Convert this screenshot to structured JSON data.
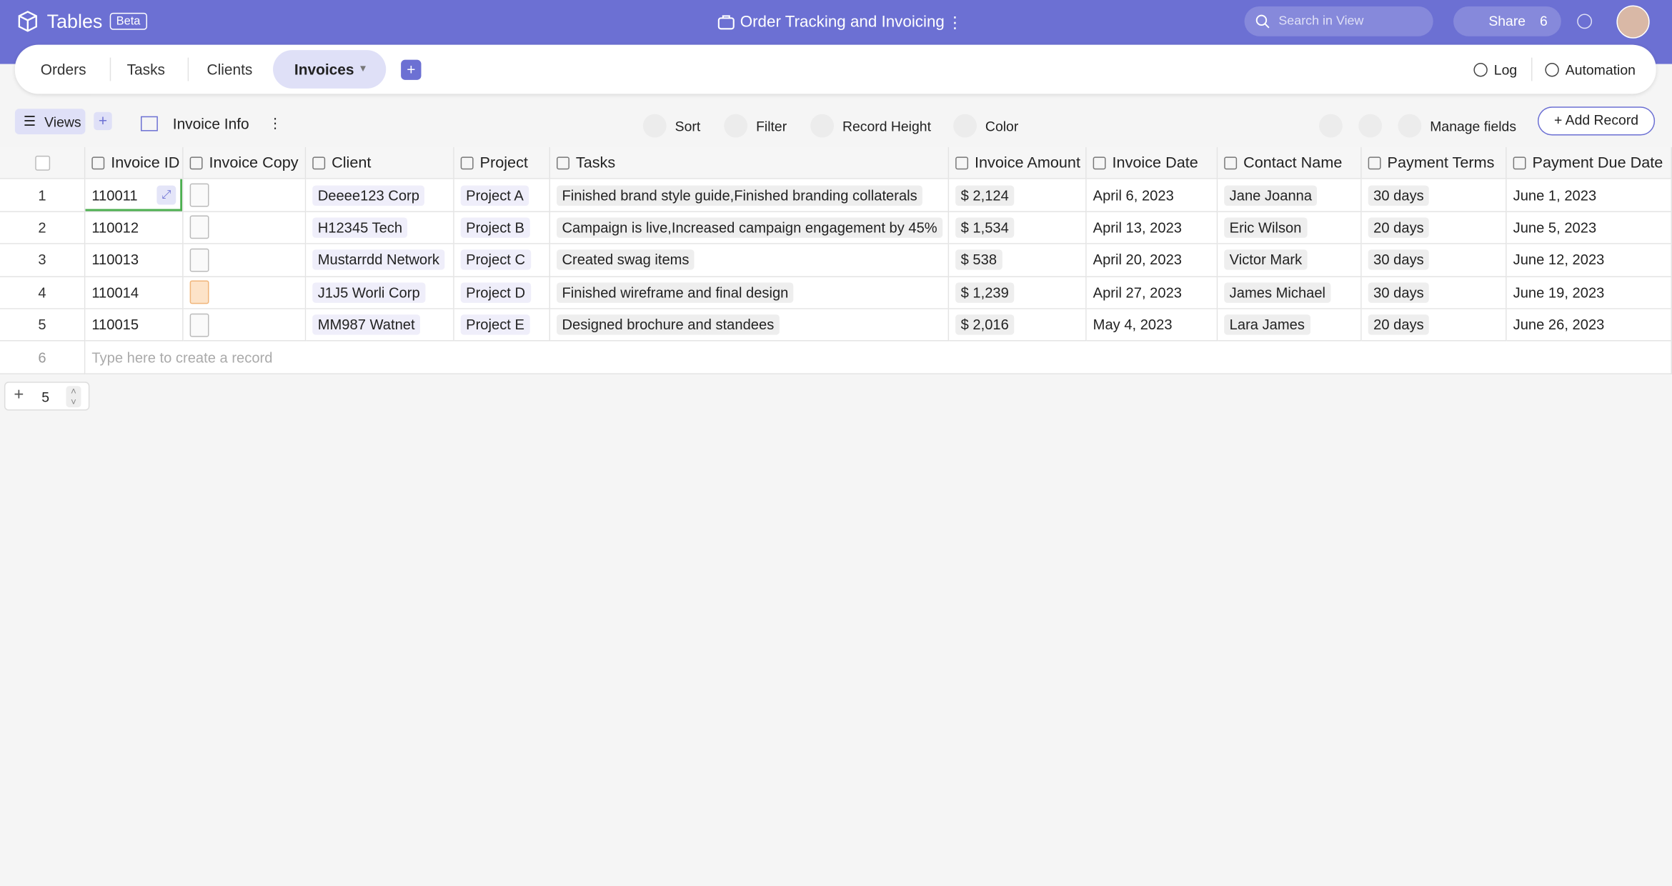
{
  "header": {
    "app": "Tables",
    "badge": "Beta",
    "title": "Order Tracking and Invoicing",
    "search": "Search in View",
    "share": "Share",
    "share_count": "6"
  },
  "tabs": [
    "Orders",
    "Tasks",
    "Clients",
    "Invoices"
  ],
  "tab_actions": [
    "Log",
    "Automation"
  ],
  "toolbar": {
    "views": "Views",
    "view_name": "Invoice Info",
    "sort": "Sort",
    "filter": "Filter",
    "record_height": "Record Height",
    "color": "Color",
    "manage_fields": "Manage fields",
    "add_record": "+ Add Record"
  },
  "table": {
    "columns": [
      "Invoice ID",
      "Invoice Copy",
      "Client",
      "Project",
      "Tasks",
      "Invoice Amount",
      "Invoice Date",
      "Contact Name",
      "Payment Terms",
      "Payment Due Date"
    ],
    "row_numbers": [
      "1",
      "2",
      "3",
      "4",
      "5"
    ],
    "rows": [
      [
        "110011",
        "Deeee123 Corp",
        "Project A",
        "Finished brand style guide,Finished branding collaterals",
        "$ 2,124",
        "April 6, 2023",
        "Jane Joanna",
        "30 days",
        "June 1, 2023"
      ],
      [
        "110012",
        "H12345 Tech",
        "Project B",
        "Campaign is live,Increased campaign engagement by 45%",
        "$ 1,534",
        "April 13, 2023",
        "Eric Wilson",
        "20 days",
        "June 5, 2023"
      ],
      [
        "110013",
        "Mustarrdd Network",
        "Project C",
        "Created swag items",
        "$ 538",
        "April 20, 2023",
        "Victor Mark",
        "30 days",
        "June 12, 2023"
      ],
      [
        "110014",
        "J1J5 Worli Corp",
        "Project D",
        "Finished wireframe and final design",
        "$ 1,239",
        "April 27, 2023",
        "James Michael",
        "30 days",
        "June 19, 2023"
      ],
      [
        "110015",
        "MM987 Watnet",
        "Project E",
        "Designed brochure and standees",
        "$ 2,016",
        "May 4, 2023",
        "Lara James",
        "20 days",
        "June 26, 2023"
      ]
    ],
    "new_row": {
      "number": "6",
      "placeholder": "Type here to create a record"
    }
  },
  "footer": {
    "count": "5"
  }
}
